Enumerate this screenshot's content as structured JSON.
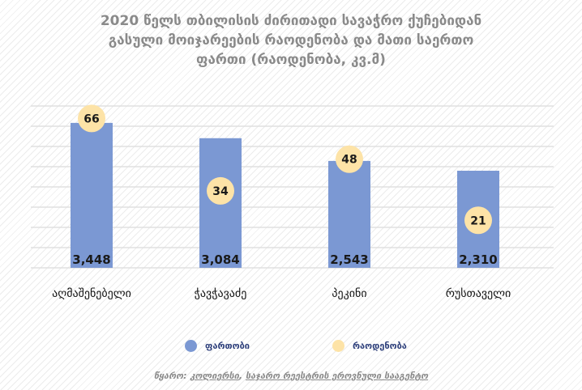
{
  "chart_data": {
    "type": "bar",
    "title_lines": [
      "2020 წელს თბილისის ძირითადი სავაჭრო ქუჩებიდან",
      "გასული მოიჯარეების რაოდენობა და მათი საერთო",
      "ფართი (რაოდენობა, კვ.მ)"
    ],
    "categories": [
      "აღმაშენებელი",
      "ჭავჭავაძე",
      "პეკინი",
      "რუსთაველი"
    ],
    "series": [
      {
        "name": "ფართობი",
        "kind": "bar",
        "color": "#7b98d3",
        "values": [
          3448,
          3084,
          2543,
          2310
        ],
        "labels": [
          "3,448",
          "3,084",
          "2,543",
          "2,310"
        ]
      },
      {
        "name": "რაოდენობა",
        "kind": "marker",
        "color": "#fde3a7",
        "values": [
          66,
          34,
          48,
          21
        ],
        "labels": [
          "66",
          "34",
          "48",
          "21"
        ]
      }
    ],
    "ylim": [
      0,
      3850
    ],
    "y2lim": [
      0,
      71.5
    ],
    "gridlines": 8,
    "grid": true,
    "legend_position": "bottom"
  },
  "source": {
    "prefix": "წყარო:",
    "links": [
      "კოლიერსი",
      "საჯარო რეესტრის ეროვნული სააგენტო"
    ]
  }
}
